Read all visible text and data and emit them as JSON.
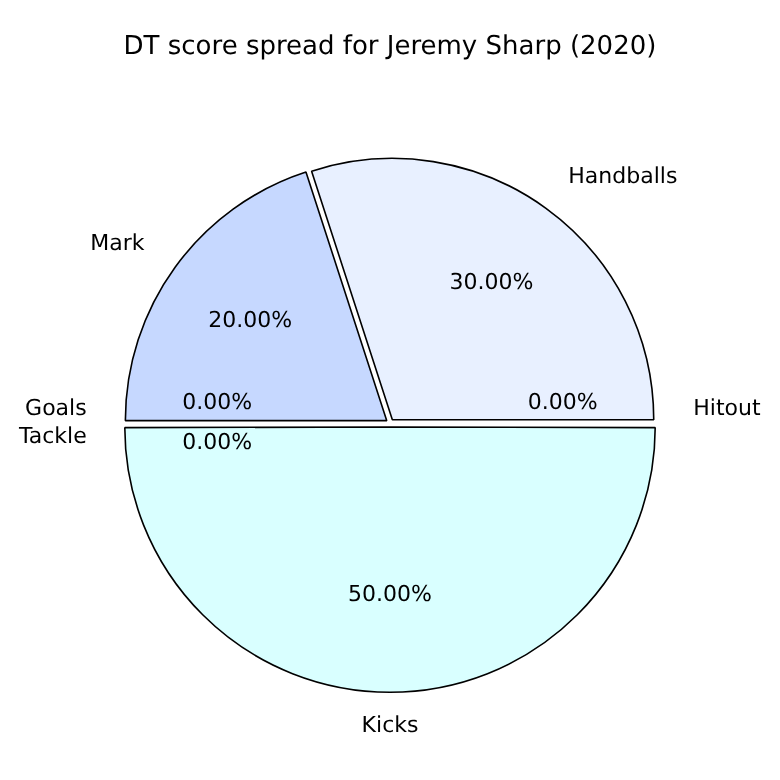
{
  "chart_data": {
    "type": "pie",
    "title": "DT score spread for Jeremy Sharp (2020)",
    "categories": [
      "Handballs",
      "Hitout",
      "Kicks",
      "Goals",
      "Tackle",
      "Mark"
    ],
    "values": [
      30,
      0,
      50,
      0,
      0,
      20
    ],
    "value_labels": [
      "30.00%",
      "0.00%",
      "50.00%",
      "0.00%",
      "0.00%",
      "20.00%"
    ],
    "colors": [
      "#e8f0ff",
      "#e0ecff",
      "#d9ffff",
      "#d0e4ff",
      "#cce0ff",
      "#c6d8ff"
    ],
    "legend": false
  }
}
